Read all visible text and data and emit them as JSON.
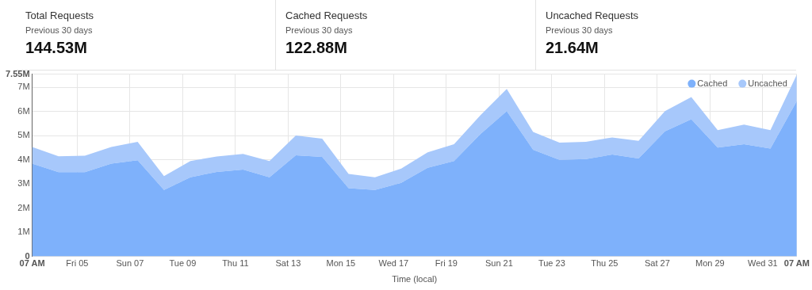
{
  "chart_data": [
    {
      "type": "other",
      "title": "Total Requests",
      "subtitle": "Previous 30 days",
      "annotations": [
        "144.53M"
      ]
    },
    {
      "type": "other",
      "title": "Cached Requests",
      "subtitle": "Previous 30 days",
      "annotations": [
        "122.88M"
      ]
    },
    {
      "type": "other",
      "title": "Uncached Requests",
      "subtitle": "Previous 30 days",
      "annotations": [
        "21.64M"
      ]
    },
    {
      "type": "area",
      "stacked": true,
      "xlabel": "Time (local)",
      "legend": "top right",
      "grid": true,
      "marker": "none",
      "x": [
        "--01-03T07:00",
        "--01-04T07:00",
        "--01-05T07:00",
        "--01-06T07:00",
        "--01-07T07:00",
        "--01-08T07:00",
        "--01-09T07:00",
        "--01-10T07:00",
        "--01-11T07:00",
        "--01-12T07:00",
        "--01-13T07:00",
        "--01-14T07:00",
        "--01-15T07:00",
        "--01-16T07:00",
        "--01-17T07:00",
        "--01-18T07:00",
        "--01-19T07:00",
        "--01-20T07:00",
        "--01-21T07:00",
        "--01-22T07:00",
        "--01-23T07:00",
        "--01-24T07:00",
        "--01-25T07:00",
        "--01-26T07:00",
        "--01-27T07:00",
        "--01-28T07:00",
        "--01-29T07:00",
        "--01-30T07:00",
        "--01-31T07:00",
        "--02-01T07:00"
      ],
      "series": [
        {
          "name": "Cached",
          "color": "#7eb1fb",
          "values": [
            3.84,
            3.49,
            3.49,
            3.84,
            3.98,
            2.75,
            3.28,
            3.5,
            3.6,
            3.28,
            4.19,
            4.12,
            2.83,
            2.75,
            3.05,
            3.67,
            3.95,
            5.07,
            6.02,
            4.42,
            4.0,
            4.03,
            4.22,
            4.06,
            5.18,
            5.68,
            4.51,
            4.65,
            4.47,
            6.44
          ]
        },
        {
          "name": "Uncached",
          "color": "#a7c8fb",
          "values": [
            0.69,
            0.66,
            0.68,
            0.69,
            0.77,
            0.58,
            0.67,
            0.64,
            0.65,
            0.67,
            0.82,
            0.76,
            0.59,
            0.53,
            0.59,
            0.64,
            0.7,
            0.78,
            0.92,
            0.74,
            0.71,
            0.72,
            0.71,
            0.73,
            0.84,
            0.92,
            0.72,
            0.81,
            0.76,
            1.09
          ]
        }
      ],
      "xlim": [
        "--01-03T07:00",
        "--02-01T07:00"
      ],
      "xticks": [
        {
          "value": "--01-03T07:00",
          "label": "07 AM"
        },
        {
          "value": "--01-05",
          "label": "Fri 05"
        },
        {
          "value": "--01-07",
          "label": "Sun 07"
        },
        {
          "value": "--01-09",
          "label": "Tue 09"
        },
        {
          "value": "--01-11",
          "label": "Thu 11"
        },
        {
          "value": "--01-13",
          "label": "Sat 13"
        },
        {
          "value": "--01-15",
          "label": "Mon 15"
        },
        {
          "value": "--01-17",
          "label": "Wed 17"
        },
        {
          "value": "--01-19",
          "label": "Fri 19"
        },
        {
          "value": "--01-21",
          "label": "Sun 21"
        },
        {
          "value": "--01-23",
          "label": "Tue 23"
        },
        {
          "value": "--01-25",
          "label": "Thu 25"
        },
        {
          "value": "--01-27",
          "label": "Sat 27"
        },
        {
          "value": "--01-29",
          "label": "Mon 29"
        },
        {
          "value": "--01-31",
          "label": "Wed 31"
        },
        {
          "value": "--02-01T07:00",
          "label": "07 AM"
        }
      ],
      "ylim": [
        0,
        7.55
      ],
      "yticks": [
        {
          "value": 0,
          "label": "0"
        },
        {
          "value": 1,
          "label": "1M"
        },
        {
          "value": 2,
          "label": "2M"
        },
        {
          "value": 3,
          "label": "3M"
        },
        {
          "value": 4,
          "label": "4M"
        },
        {
          "value": 5,
          "label": "5M"
        },
        {
          "value": 6,
          "label": "6M"
        },
        {
          "value": 7,
          "label": "7M"
        },
        {
          "value": 7.55,
          "label": "7.55M"
        }
      ]
    }
  ]
}
